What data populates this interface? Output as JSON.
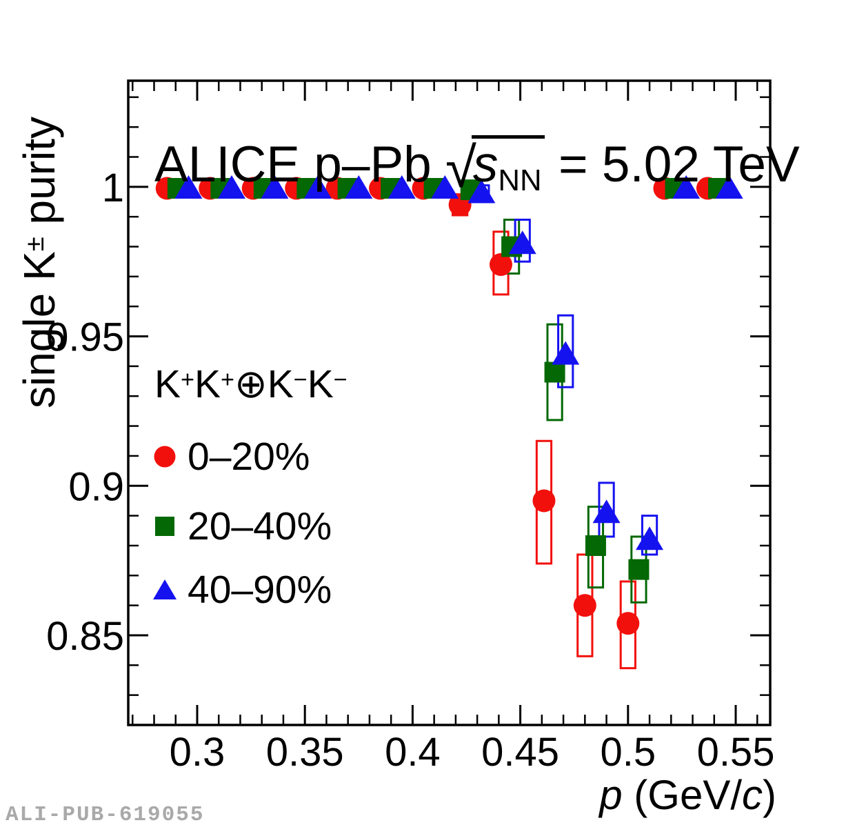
{
  "meta": {
    "watermark": "ALI-PUB-619055"
  },
  "title": {
    "parts": [
      {
        "t": "ALICE  p–Pb  "
      },
      {
        "t": "√"
      },
      {
        "t": "s"
      },
      {
        "t": "NN"
      },
      {
        "t": " = 5.02 TeV"
      }
    ]
  },
  "axes": {
    "x": {
      "title_parts": [
        {
          "t": "p"
        },
        {
          "t": " (GeV/"
        },
        {
          "t": "c"
        },
        {
          "t": ")"
        }
      ],
      "major_ticks": [
        {
          "v": 0.3,
          "label": "0.3"
        },
        {
          "v": 0.35,
          "label": "0.35"
        },
        {
          "v": 0.4,
          "label": "0.4"
        },
        {
          "v": 0.45,
          "label": "0.45"
        },
        {
          "v": 0.5,
          "label": "0.5"
        },
        {
          "v": 0.55,
          "label": "0.55"
        }
      ],
      "minor_start": 0.27,
      "minor_end": 0.56,
      "minor_step": 0.01
    },
    "y": {
      "title_parts": [
        {
          "t": "single K"
        },
        {
          "t": "±"
        },
        {
          "t": " purity"
        }
      ],
      "major_ticks": [
        {
          "v": 0.85,
          "label": "0.85"
        },
        {
          "v": 0.9,
          "label": "0.9"
        },
        {
          "v": 0.95,
          "label": "0.95"
        },
        {
          "v": 1.0,
          "label": "1"
        }
      ],
      "minor_start": 0.83,
      "minor_end": 1.03,
      "minor_step": 0.01
    }
  },
  "legend": {
    "header_parts": [
      {
        "t": "K"
      },
      {
        "t": "+"
      },
      {
        "t": "K"
      },
      {
        "t": "+"
      },
      {
        "t": "⊕"
      },
      {
        "t": "K"
      },
      {
        "t": "−"
      },
      {
        "t": "K"
      },
      {
        "t": "−"
      }
    ]
  },
  "chart_data": {
    "type": "scatter",
    "title": "ALICE p-Pb sqrt(s_NN) = 5.02 TeV",
    "xlabel": "p (GeV/c)",
    "ylabel": "single K± purity",
    "xlim": [
      0.268,
      0.566
    ],
    "ylim": [
      0.82,
      1.0355
    ],
    "grid": false,
    "legend_position": "center-left",
    "frame_color": "#000000",
    "syst_box_halfwidth_x": 0.0034,
    "series": [
      {
        "name": "0–20%",
        "marker": "circle",
        "color": "#f2100c",
        "points": [
          {
            "x": 0.286,
            "y": 0.9995,
            "box": null
          },
          {
            "x": 0.306,
            "y": 0.9995,
            "box": null
          },
          {
            "x": 0.326,
            "y": 0.9995,
            "box": null
          },
          {
            "x": 0.346,
            "y": 0.9995,
            "box": null
          },
          {
            "x": 0.365,
            "y": 0.9995,
            "box": null
          },
          {
            "x": 0.385,
            "y": 0.9995,
            "box": null
          },
          {
            "x": 0.405,
            "y": 0.9995,
            "box": null
          },
          {
            "x": 0.422,
            "y": 0.994,
            "box": [
              0.9905,
              0.9975
            ]
          },
          {
            "x": 0.441,
            "y": 0.974,
            "box": [
              0.964,
              0.985
            ]
          },
          {
            "x": 0.461,
            "y": 0.895,
            "box": [
              0.874,
              0.915
            ]
          },
          {
            "x": 0.48,
            "y": 0.86,
            "box": [
              0.843,
              0.877
            ]
          },
          {
            "x": 0.5,
            "y": 0.854,
            "box": [
              0.839,
              0.868
            ]
          },
          {
            "x": 0.517,
            "y": 0.9995,
            "box": null
          },
          {
            "x": 0.537,
            "y": 0.9995,
            "box": null
          }
        ]
      },
      {
        "name": "20–40%",
        "marker": "square",
        "color": "#046804",
        "points": [
          {
            "x": 0.291,
            "y": 0.9995,
            "box": null
          },
          {
            "x": 0.311,
            "y": 0.9995,
            "box": null
          },
          {
            "x": 0.331,
            "y": 0.9995,
            "box": null
          },
          {
            "x": 0.351,
            "y": 0.9995,
            "box": null
          },
          {
            "x": 0.37,
            "y": 0.9995,
            "box": null
          },
          {
            "x": 0.39,
            "y": 0.9995,
            "box": null
          },
          {
            "x": 0.41,
            "y": 0.9995,
            "box": null
          },
          {
            "x": 0.427,
            "y": 0.999,
            "box": null
          },
          {
            "x": 0.446,
            "y": 0.98,
            "box": [
              0.971,
              0.989
            ]
          },
          {
            "x": 0.466,
            "y": 0.938,
            "box": [
              0.922,
              0.954
            ]
          },
          {
            "x": 0.485,
            "y": 0.88,
            "box": [
              0.866,
              0.893
            ]
          },
          {
            "x": 0.505,
            "y": 0.872,
            "box": [
              0.861,
              0.883
            ]
          },
          {
            "x": 0.522,
            "y": 0.9995,
            "box": null
          },
          {
            "x": 0.542,
            "y": 0.9995,
            "box": null
          }
        ]
      },
      {
        "name": "40–90%",
        "marker": "triangle",
        "color": "#1512f0",
        "points": [
          {
            "x": 0.296,
            "y": 0.9995,
            "box": null
          },
          {
            "x": 0.316,
            "y": 0.9995,
            "box": null
          },
          {
            "x": 0.336,
            "y": 0.9995,
            "box": null
          },
          {
            "x": 0.356,
            "y": 0.9995,
            "box": null
          },
          {
            "x": 0.375,
            "y": 0.9995,
            "box": null
          },
          {
            "x": 0.395,
            "y": 0.9995,
            "box": null
          },
          {
            "x": 0.415,
            "y": 0.9995,
            "box": null
          },
          {
            "x": 0.432,
            "y": 0.998,
            "box": [
              0.995,
              1.0005
            ]
          },
          {
            "x": 0.451,
            "y": 0.981,
            "box": [
              0.975,
              0.989
            ]
          },
          {
            "x": 0.471,
            "y": 0.944,
            "box": [
              0.933,
              0.957
            ]
          },
          {
            "x": 0.49,
            "y": 0.891,
            "box": [
              0.883,
              0.901
            ]
          },
          {
            "x": 0.51,
            "y": 0.882,
            "box": [
              0.877,
              0.89
            ]
          },
          {
            "x": 0.527,
            "y": 0.9995,
            "box": null
          },
          {
            "x": 0.547,
            "y": 0.9995,
            "box": null
          }
        ]
      }
    ]
  }
}
